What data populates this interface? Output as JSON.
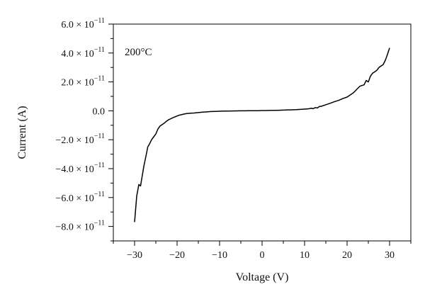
{
  "chart_data": {
    "type": "line",
    "title": "",
    "xlabel": "Voltage (V)",
    "ylabel": "Current (A)",
    "annotation": "200°C",
    "xlim": [
      -35,
      35
    ],
    "ylim": [
      -9e-11,
      6e-11
    ],
    "grid": false,
    "legend": "none",
    "line_color": "#000000",
    "x_ticks": [
      {
        "value": -30,
        "label": "−30"
      },
      {
        "value": -20,
        "label": "−20"
      },
      {
        "value": -10,
        "label": "−10"
      },
      {
        "value": 0,
        "label": "0"
      },
      {
        "value": 10,
        "label": "10"
      },
      {
        "value": 20,
        "label": "20"
      },
      {
        "value": 30,
        "label": "30"
      }
    ],
    "y_ticks": [
      {
        "value": 6e-11,
        "mant": "6.0",
        "exp": true
      },
      {
        "value": 4e-11,
        "mant": "4.0",
        "exp": true
      },
      {
        "value": 2e-11,
        "mant": "2.0",
        "exp": true
      },
      {
        "value": 0,
        "mant": "0.0",
        "exp": false
      },
      {
        "value": -2e-11,
        "mant": "−2.0",
        "exp": true
      },
      {
        "value": -4e-11,
        "mant": "−4.0",
        "exp": true
      },
      {
        "value": -6e-11,
        "mant": "−6.0",
        "exp": true
      },
      {
        "value": -8e-11,
        "mant": "−8.0",
        "exp": true
      }
    ],
    "y_exp_base": " × 10",
    "y_exp_power": "−11",
    "series": [
      {
        "x": [
          -30,
          -29.5,
          -29,
          -28.6,
          -28.2,
          -27.8,
          -27.3,
          -26.9,
          -26.5,
          -26,
          -25.5,
          -25,
          -24.5,
          -24,
          -23.5,
          -23,
          -22.5,
          -22,
          -21.5,
          -21,
          -20.5,
          -20,
          -19.5,
          -19,
          -18.5,
          -18,
          -17.5,
          -17,
          -16.5,
          -16,
          -15,
          -14,
          -13,
          -12,
          -11,
          -10,
          -9,
          -8,
          -7,
          -6,
          -5,
          -4,
          -3,
          -2,
          -1,
          0,
          1,
          2,
          3,
          4,
          5,
          6,
          7,
          8,
          9,
          10,
          11,
          11.5,
          12,
          12.5,
          13,
          13.5,
          14,
          15,
          16,
          17,
          18,
          19,
          20,
          20.5,
          21,
          21.5,
          22,
          22.5,
          23,
          23.5,
          24,
          24.5,
          25,
          25.5,
          26,
          26.5,
          27,
          27.5,
          28,
          28.5,
          29,
          29.5,
          30
        ],
        "y": [
          -7.7e-11,
          -5.9e-11,
          -5.1e-11,
          -5.2e-11,
          -4.5e-11,
          -3.8e-11,
          -3.1e-11,
          -2.5e-11,
          -2.3e-11,
          -2e-11,
          -1.8e-11,
          -1.6e-11,
          -1.25e-11,
          -1.05e-11,
          -9.5e-12,
          -8.5e-12,
          -7.2e-12,
          -6.2e-12,
          -5.5e-12,
          -4.8e-12,
          -4.2e-12,
          -3.6e-12,
          -3e-12,
          -2.7e-12,
          -2.3e-12,
          -2e-12,
          -1.8e-12,
          -1.7e-12,
          -1.6e-12,
          -1.5e-12,
          -1.2e-12,
          -9e-13,
          -7e-13,
          -5e-13,
          -4e-13,
          -3e-13,
          -2e-13,
          -1.5e-13,
          -1e-13,
          -5e-14,
          0,
          0,
          5e-14,
          1e-13,
          1e-13,
          2e-13,
          2e-13,
          3e-13,
          3e-13,
          4e-13,
          5e-13,
          6e-13,
          7e-13,
          8e-13,
          1e-12,
          1.2e-12,
          1.4e-12,
          1.8e-12,
          1.5e-12,
          2.2e-12,
          2e-12,
          3e-12,
          3.2e-12,
          4.2e-12,
          5.2e-12,
          6.3e-12,
          7.2e-12,
          8.5e-12,
          9.5e-12,
          1.05e-11,
          1.15e-11,
          1.25e-11,
          1.4e-11,
          1.55e-11,
          1.7e-11,
          1.75e-11,
          1.8e-11,
          2.1e-11,
          2e-11,
          2.4e-11,
          2.6e-11,
          2.7e-11,
          2.8e-11,
          3e-11,
          3.1e-11,
          3.2e-11,
          3.5e-11,
          3.9e-11,
          4.35e-11
        ]
      }
    ]
  }
}
